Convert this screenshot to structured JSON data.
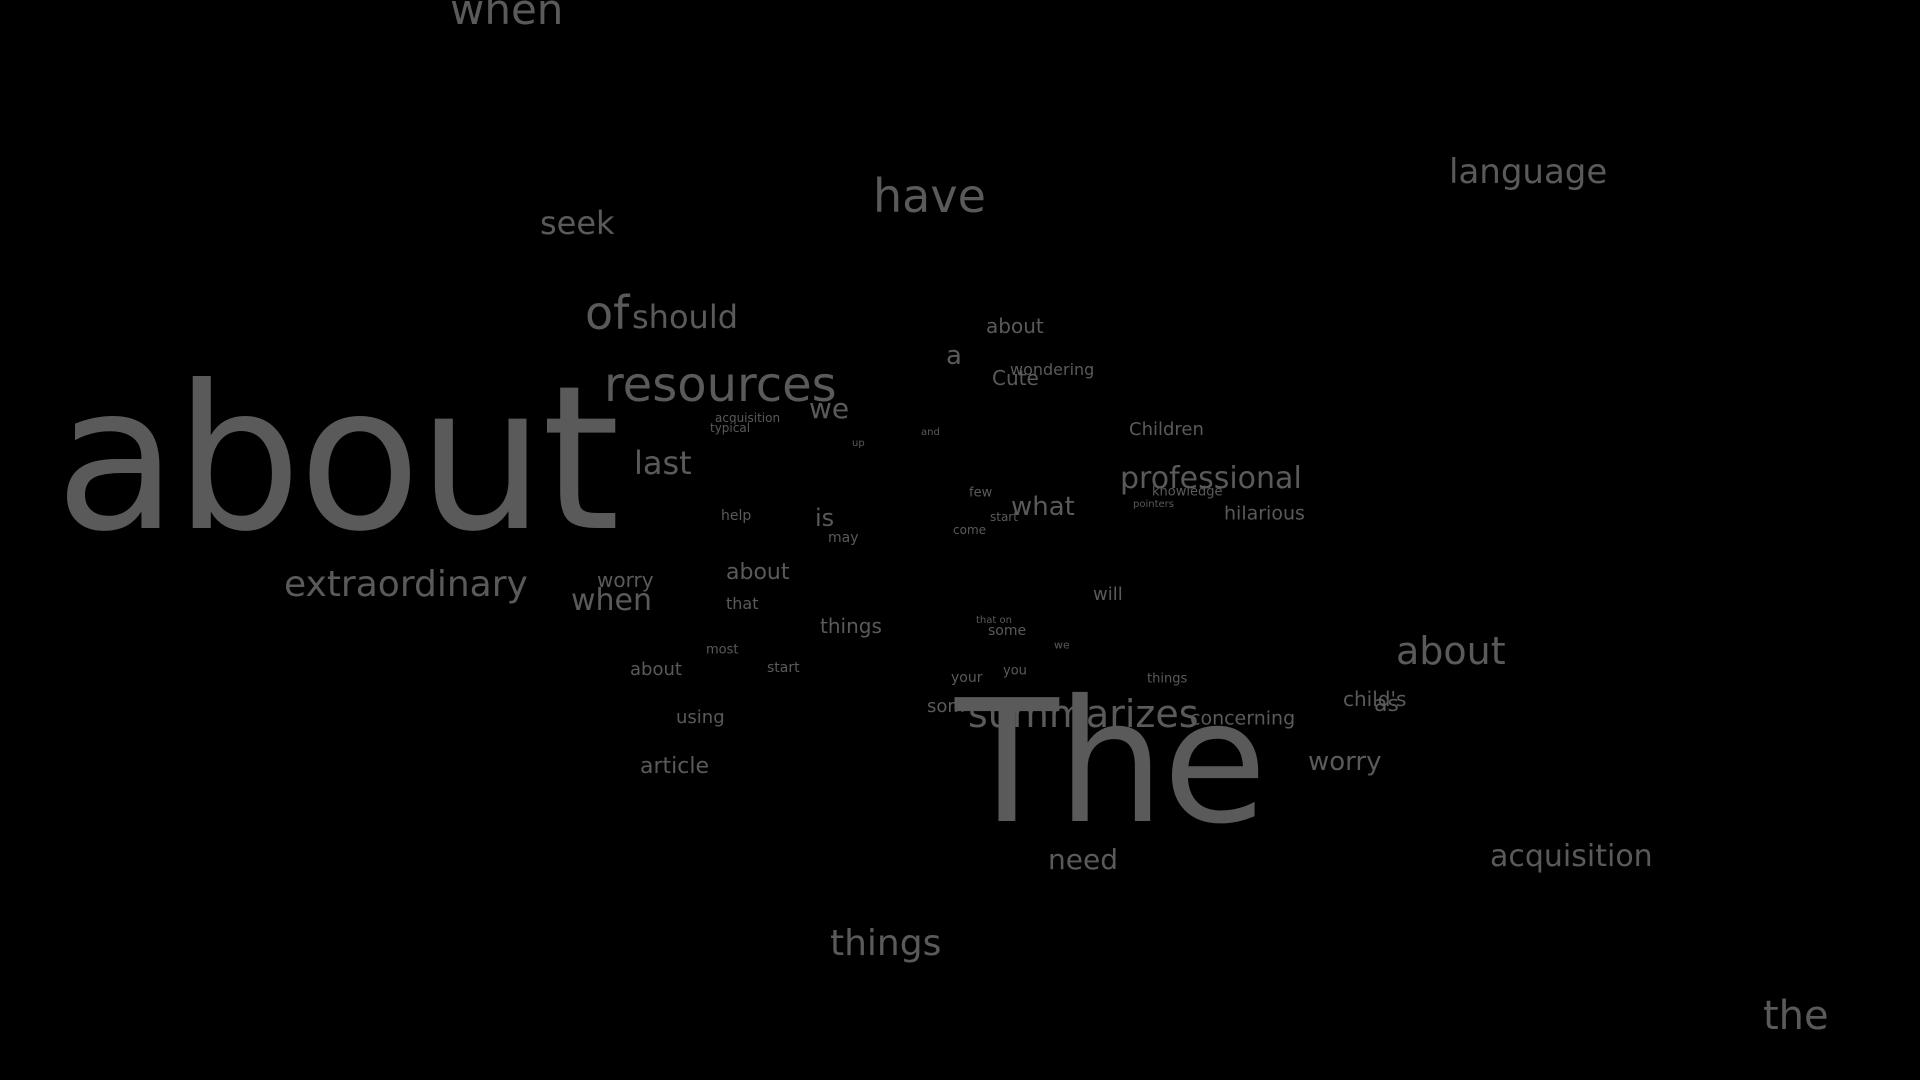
{
  "background_color": "#000000",
  "text_color": "#5a5a5a",
  "words": [
    "when",
    "have",
    "language",
    "seek",
    "of",
    "should",
    "about",
    "a",
    "wondering",
    "Cute",
    "resources",
    "we",
    "acquisition",
    "typical",
    "up",
    "and",
    "Children",
    "about",
    "last",
    "professional",
    "knowledge",
    "pointers",
    "few",
    "what",
    "hilarious",
    "help",
    "is",
    "start",
    "may",
    "come",
    "extraordinary",
    "worry",
    "about",
    "when",
    "that",
    "will",
    "things",
    "that on",
    "some",
    "we",
    "about",
    "most",
    "about",
    "start",
    "your",
    "you",
    "things",
    "child's",
    "as",
    "summarizes",
    "som",
    "concerning",
    "using",
    "The",
    "worry",
    "article",
    "need",
    "acquisition",
    "things",
    "the"
  ]
}
